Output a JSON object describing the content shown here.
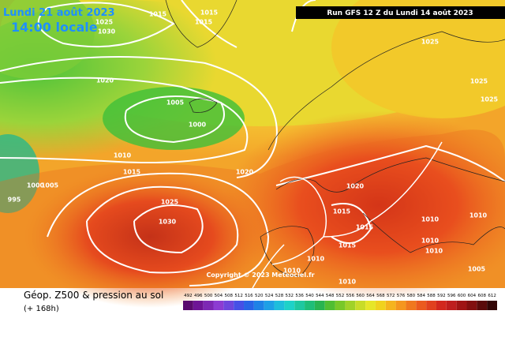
{
  "header": {
    "date": "Lundi 21 août 2023",
    "time": "14:00 locale",
    "run": "Run GFS 12 Z du Lundi 14 août 2023"
  },
  "footer": {
    "title": "Géop. Z500 & pression au sol",
    "lead": "(+ 168h)",
    "copyright": "Copyright © 2023 Meteociel.fr"
  },
  "isobars": [
    1015,
    1015,
    1015,
    1025,
    1030,
    1020,
    1005,
    1000,
    1010,
    1015,
    1020,
    1000,
    1005,
    995,
    1025,
    1030,
    1020,
    1015,
    1015,
    1015,
    1010,
    1010,
    1010,
    1010,
    1005,
    1010,
    1025,
    1025,
    1025,
    1010,
    1010
  ],
  "colorbar": {
    "labels": [
      492,
      496,
      500,
      504,
      508,
      512,
      516,
      520,
      524,
      528,
      532,
      536,
      540,
      544,
      548,
      552,
      556,
      560,
      564,
      568,
      572,
      576,
      580,
      584,
      588,
      592,
      596,
      600,
      604,
      608,
      612
    ],
    "colors": [
      "#5a0a6e",
      "#6e1496",
      "#7d28b4",
      "#8c3cd2",
      "#6e46dc",
      "#4650e6",
      "#2864e6",
      "#1e82e6",
      "#1ea0e6",
      "#1ebedc",
      "#1ed2c8",
      "#1ec8a0",
      "#1ebe78",
      "#28b450",
      "#50be32",
      "#78c828",
      "#a0d228",
      "#c8dc28",
      "#e6e628",
      "#f0d21e",
      "#f5b41e",
      "#f5961e",
      "#f0781e",
      "#eb5a1e",
      "#e1411e",
      "#d2281e",
      "#be1e1e",
      "#a01414",
      "#820f0f",
      "#5a0a0a",
      "#320505"
    ]
  }
}
